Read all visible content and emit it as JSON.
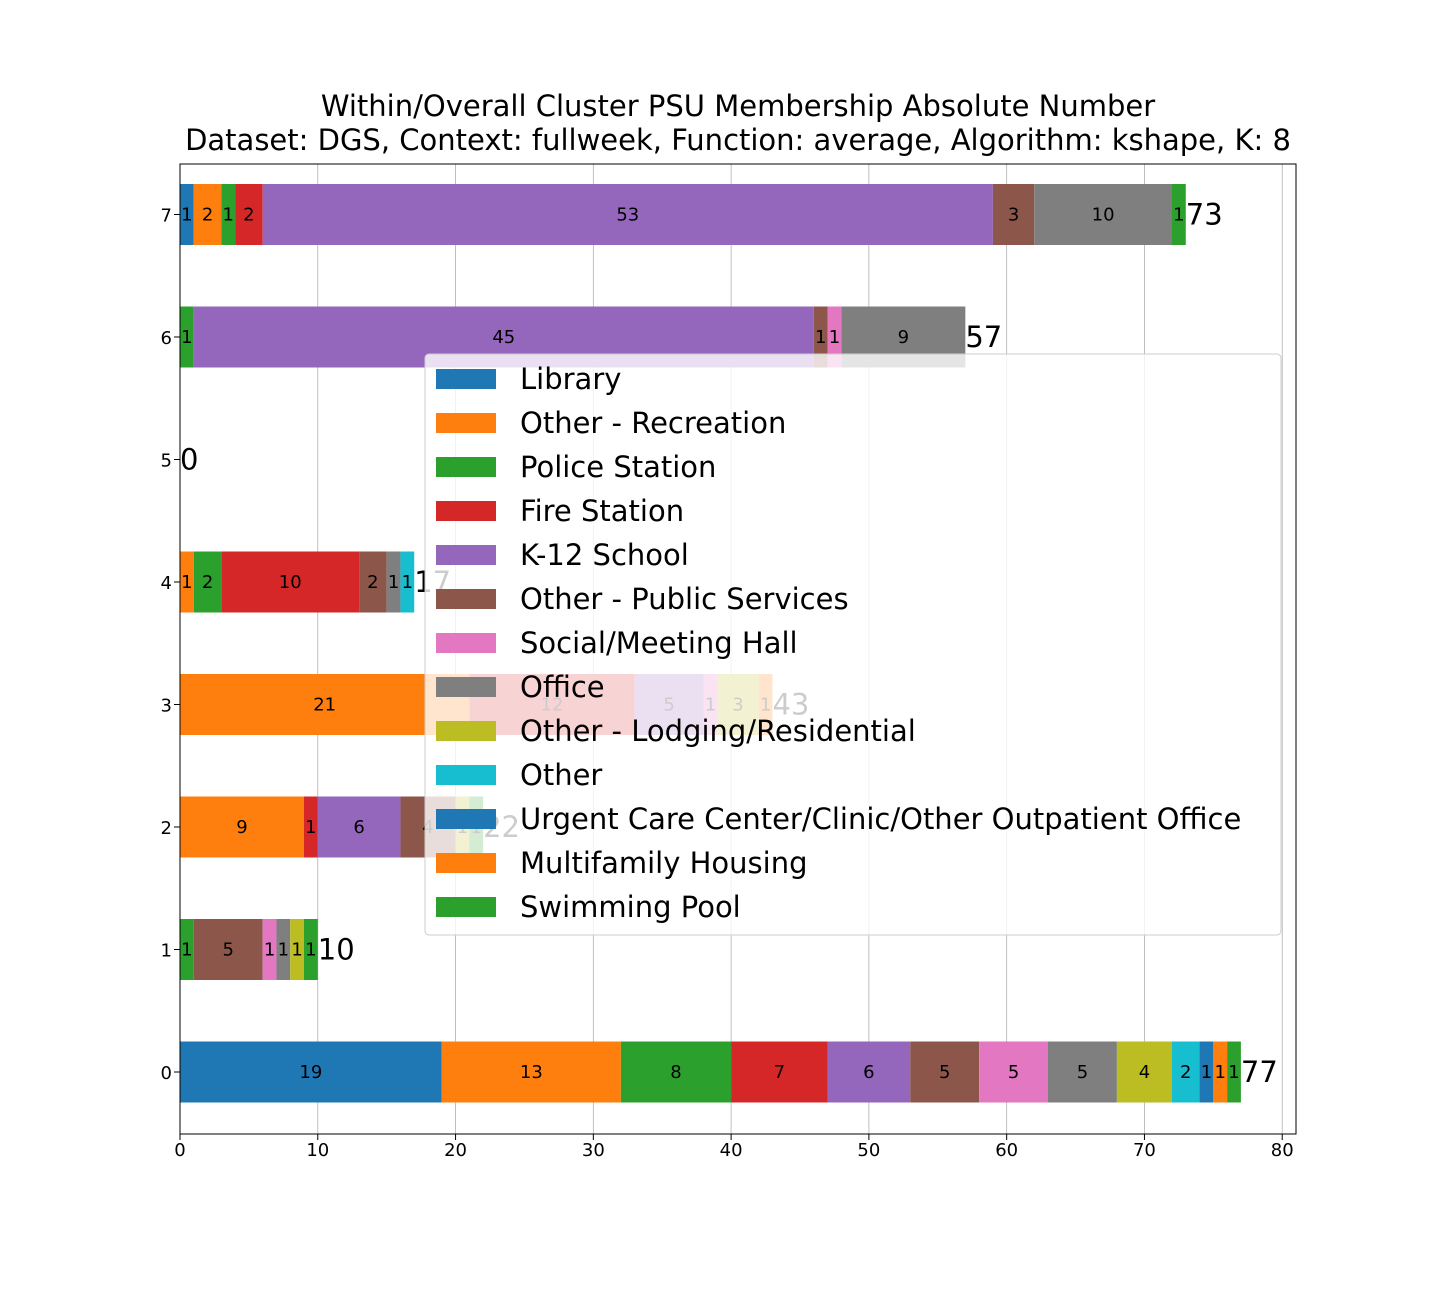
{
  "chart_data": {
    "type": "bar",
    "orientation": "horizontal",
    "stacked": true,
    "title_lines": [
      "Within/Overall Cluster PSU Membership Absolute Number",
      "Dataset: DGS, Context: fullweek, Function: average, Algorithm: kshape, K: 8"
    ],
    "xlabel": "",
    "ylabel": "",
    "xlim": [
      0,
      81
    ],
    "xticks": [
      0,
      10,
      20,
      30,
      40,
      50,
      60,
      70,
      80
    ],
    "categories": [
      "0",
      "1",
      "2",
      "3",
      "4",
      "5",
      "6",
      "7"
    ],
    "grid": true,
    "legend_position": "center-right",
    "series": [
      {
        "name": "Library",
        "color": "#1f77b4",
        "values": [
          19,
          0,
          0,
          0,
          0,
          0,
          0,
          1
        ]
      },
      {
        "name": "Other - Recreation",
        "color": "#ff7f0e",
        "values": [
          13,
          0,
          9,
          21,
          1,
          0,
          0,
          2
        ]
      },
      {
        "name": "Police Station",
        "color": "#2ca02c",
        "values": [
          8,
          1,
          0,
          0,
          2,
          0,
          1,
          1
        ]
      },
      {
        "name": "Fire Station",
        "color": "#d62728",
        "values": [
          7,
          0,
          1,
          12,
          10,
          0,
          0,
          2
        ]
      },
      {
        "name": "K-12 School",
        "color": "#9467bd",
        "values": [
          6,
          0,
          6,
          5,
          0,
          0,
          45,
          53
        ]
      },
      {
        "name": "Other - Public Services",
        "color": "#8c564b",
        "values": [
          5,
          5,
          4,
          0,
          2,
          0,
          1,
          3
        ]
      },
      {
        "name": "Social/Meeting Hall",
        "color": "#e377c2",
        "values": [
          5,
          1,
          0,
          1,
          0,
          0,
          1,
          0
        ]
      },
      {
        "name": "Office",
        "color": "#7f7f7f",
        "values": [
          5,
          1,
          0,
          0,
          1,
          0,
          9,
          10
        ]
      },
      {
        "name": "Other - Lodging/Residential",
        "color": "#bcbd22",
        "values": [
          4,
          1,
          1,
          3,
          0,
          0,
          0,
          0
        ]
      },
      {
        "name": "Other",
        "color": "#17becf",
        "values": [
          2,
          0,
          0,
          0,
          1,
          0,
          0,
          0
        ]
      },
      {
        "name": "Urgent Care Center/Clinic/Other Outpatient Office",
        "color": "#1f77b4",
        "values": [
          1,
          0,
          0,
          0,
          0,
          0,
          0,
          0
        ]
      },
      {
        "name": "Multifamily Housing",
        "color": "#ff7f0e",
        "values": [
          1,
          0,
          0,
          1,
          0,
          0,
          0,
          0
        ]
      },
      {
        "name": "Swimming Pool",
        "color": "#2ca02c",
        "values": [
          1,
          1,
          1,
          0,
          0,
          0,
          0,
          1
        ]
      }
    ],
    "totals": [
      77,
      10,
      22,
      43,
      17,
      0,
      57,
      73
    ]
  }
}
